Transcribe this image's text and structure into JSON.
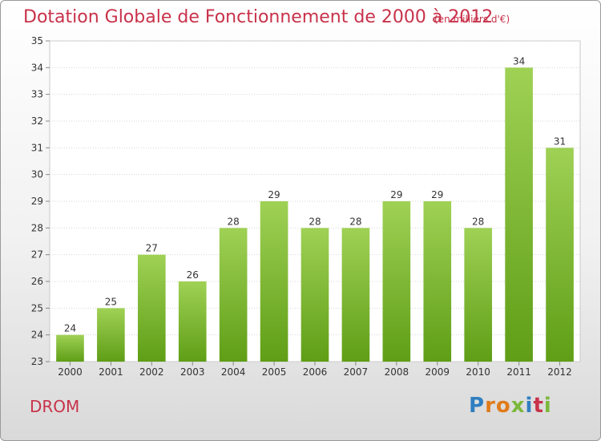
{
  "header": {
    "title": "Dotation Globale de Fonctionnement de 2000 à 2012",
    "subtitle": "(en milliers d'€)"
  },
  "footer": {
    "commune": "DROM",
    "logo_letters": [
      "P",
      "r",
      "o",
      "x",
      "i",
      "t",
      "i"
    ],
    "logo_colors": [
      "#2f7fc1",
      "#e07b1a",
      "#e07b1a",
      "#7bb83a",
      "#2f7fc1",
      "#c8324a",
      "#7bb83a"
    ]
  },
  "chart_data": {
    "type": "bar",
    "categories": [
      "2000",
      "2001",
      "2002",
      "2003",
      "2004",
      "2005",
      "2006",
      "2007",
      "2008",
      "2009",
      "2010",
      "2011",
      "2012"
    ],
    "values": [
      24,
      25,
      27,
      26,
      28,
      29,
      28,
      28,
      29,
      29,
      28,
      34,
      31
    ],
    "data_labels": [
      "24",
      "25",
      "27",
      "26",
      "28",
      "29",
      "28",
      "28",
      "29",
      "29",
      "28",
      "34",
      "31"
    ],
    "yticks": [
      23,
      24,
      25,
      26,
      27,
      28,
      29,
      30,
      31,
      32,
      33,
      34,
      35
    ],
    "ylim": [
      23,
      35
    ],
    "grid": true,
    "bar_color": "#8cc43e"
  }
}
